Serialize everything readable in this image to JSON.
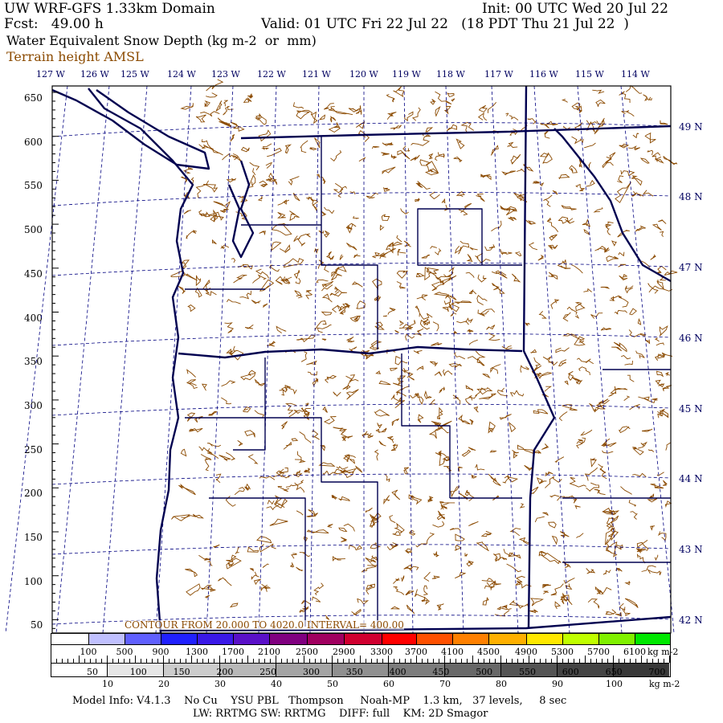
{
  "header": {
    "title": "UW WRF-GFS 1.33km Domain",
    "init": "Init: 00 UTC Wed 20 Jul 22",
    "fcst": "Fcst:   49.00 h",
    "valid": "Valid: 01 UTC Fri 22 Jul 22   (18 PDT Thu 21 Jul 22  )",
    "field": "Water Equivalent Snow Depth (kg m-2  or  mm)",
    "overlay": "Terrain height AMSL",
    "overlay_color": "#8B4A00"
  },
  "map": {
    "longitude_labels": [
      "127 W",
      "126 W",
      "125 W",
      "124 W",
      "123 W",
      "122 W",
      "121 W",
      "120 W",
      "119 W",
      "118 W",
      "117 W",
      "116 W",
      "115 W",
      "114 W"
    ],
    "latitude_labels": [
      "49 N",
      "48 N",
      "47 N",
      "46 N",
      "45 N",
      "44 N",
      "43 N",
      "42 N"
    ],
    "y_axis_labels": [
      "650",
      "600",
      "550",
      "500",
      "450",
      "400",
      "350",
      "300",
      "250",
      "200",
      "150",
      "100",
      "50"
    ],
    "contour_info": "CONTOUR FROM 20.000 TO 4020.0 INTERVAL= 400.00",
    "boundary_color": "#000050",
    "grid_color": "#000080"
  },
  "terrain_colorbar": {
    "labels": [
      "100",
      "500",
      "900",
      "1300",
      "1700",
      "2100",
      "2500",
      "2900",
      "3300",
      "3700",
      "4100",
      "4500",
      "4900",
      "5300",
      "5700",
      "6100"
    ],
    "units": "kg m-2",
    "colors": [
      "#ffffff",
      "#c0c0ff",
      "#6060ff",
      "#2020ff",
      "#3a18e8",
      "#5a10c8",
      "#800080",
      "#a00060",
      "#d00030",
      "#ff0000",
      "#ff5000",
      "#ff8000",
      "#ffb000",
      "#ffe800",
      "#c0ff00",
      "#80f000",
      "#00e800"
    ]
  },
  "snow_colorbar": {
    "inner_labels": [
      "50",
      "100",
      "150",
      "200",
      "250",
      "300",
      "350",
      "400",
      "450",
      "500",
      "550",
      "600",
      "650",
      "700"
    ],
    "outer_labels": [
      "10",
      "20",
      "30",
      "40",
      "50",
      "60",
      "70",
      "80",
      "90",
      "100"
    ],
    "units": "kg m-2",
    "colors": [
      "#ffffff",
      "#e6e6e6",
      "#cccccc",
      "#b8b8b8",
      "#a4a4a4",
      "#909090",
      "#7c7c7c",
      "#686868",
      "#545454",
      "#444444",
      "#383838"
    ]
  },
  "footer": {
    "line1": "Model Info: V4.1.3    No Cu    YSU PBL   Thompson     Noah-MP    1.3 km,   37 levels,     8 sec",
    "line2": "LW: RRTMG SW: RRTMG    DIFF: full    KM: 2D Smagor"
  }
}
